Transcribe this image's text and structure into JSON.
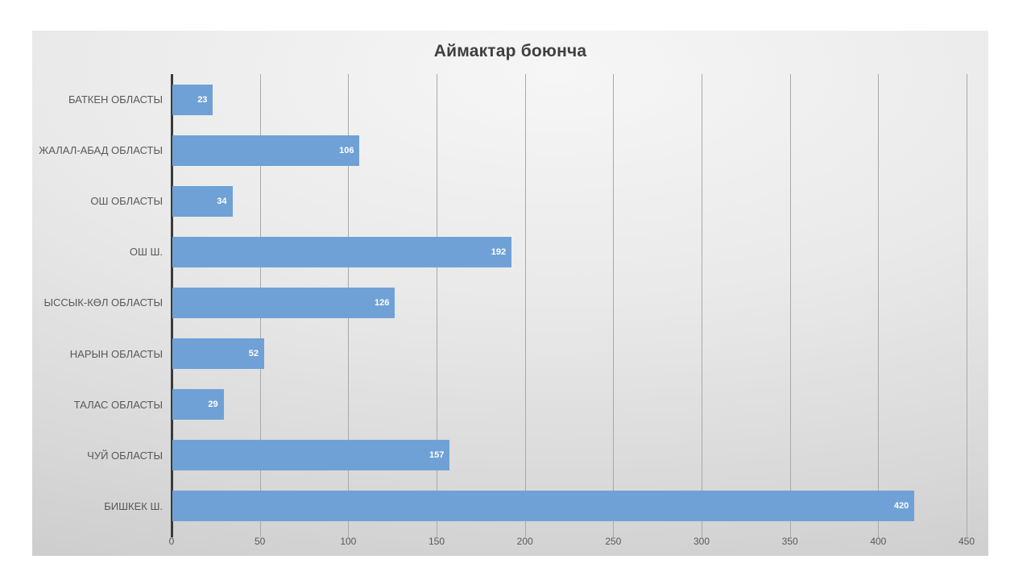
{
  "chart_data": {
    "type": "bar",
    "orientation": "horizontal",
    "title": "Аймактар боюнча",
    "categories": [
      "БАТКЕН ОБЛАСТЫ",
      "ЖАЛАЛ-АБАД ОБЛАСТЫ",
      "ОШ ОБЛАСТЫ",
      "ОШ Ш.",
      "ЫССЫК-КӨЛ ОБЛАСТЫ",
      "НАРЫН ОБЛАСТЫ",
      "ТАЛАС ОБЛАСТЫ",
      "ЧУЙ ОБЛАСТЫ",
      "БИШКЕК Ш."
    ],
    "values": [
      23,
      106,
      34,
      192,
      126,
      52,
      29,
      157,
      420
    ],
    "xlim": [
      0,
      450
    ],
    "xticks": [
      0,
      50,
      100,
      150,
      200,
      250,
      300,
      350,
      400,
      450
    ],
    "grid": true,
    "legend": false,
    "data_labels_position": "inside-end"
  },
  "colors": {
    "bar": "#6fa1d6",
    "gridline": "#a9a9a9",
    "axis_line": "#3b3b3b",
    "category_text": "#595959",
    "tick_text": "#595959",
    "value_text": "#ffffff",
    "title_text": "#3f3f3f"
  }
}
